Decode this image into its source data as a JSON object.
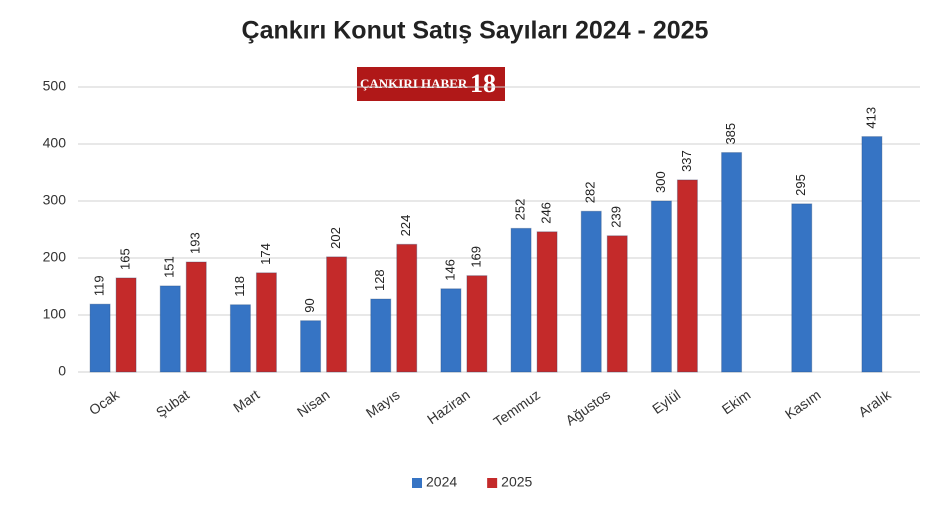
{
  "chart_data": {
    "type": "bar",
    "title": "Çankırı Konut Satış Sayıları 2024 - 2025",
    "watermark": [
      "ÇANKIRI HABER",
      "18"
    ],
    "categories": [
      "Ocak",
      "Şubat",
      "Mart",
      "Nisan",
      "Mayıs",
      "Haziran",
      "Temmuz",
      "Ağustos",
      "Eylül",
      "Ekim",
      "Kasım",
      "Aralık"
    ],
    "series": [
      {
        "name": "2024",
        "color": "#3674c4",
        "values": [
          119,
          151,
          118,
          90,
          128,
          146,
          252,
          282,
          300,
          385,
          295,
          413
        ]
      },
      {
        "name": "2025",
        "color": "#c42a2a",
        "values": [
          165,
          193,
          174,
          202,
          224,
          169,
          246,
          239,
          337,
          null,
          null,
          null
        ]
      }
    ],
    "ylim": [
      0,
      500
    ],
    "yticks": [
      0,
      100,
      200,
      300,
      400,
      500
    ],
    "grid": true,
    "legend": "bottom"
  }
}
